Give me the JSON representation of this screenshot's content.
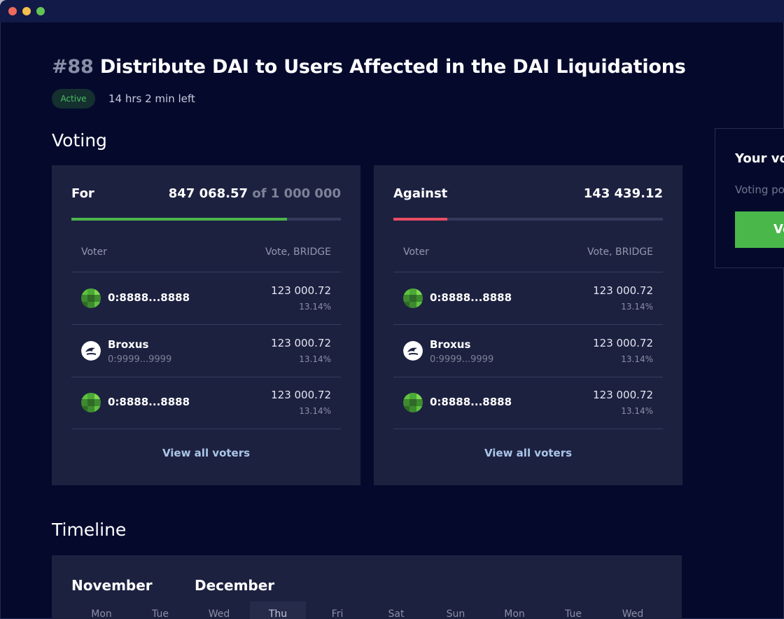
{
  "proposal": {
    "number": "#88",
    "title": "Distribute DAI to Users Affected in the DAI Liquidations",
    "status": "Active",
    "time_left": "14 hrs 2 min left"
  },
  "voting": {
    "section_title": "Voting",
    "for": {
      "label": "For",
      "total": "847 068.57",
      "of_text": "of 1 000 000",
      "progress_fraction": 0.8,
      "bar_color": "#4bb54b",
      "col_voter": "Voter",
      "col_vote": "Vote, BRIDGE",
      "rows": [
        {
          "name": "0:8888...8888",
          "sub": "",
          "amount": "123 000.72",
          "pct": "13.14%",
          "avatar": "green-pattern-avatar"
        },
        {
          "name": "Broxus",
          "sub": "0:9999...9999",
          "amount": "123 000.72",
          "pct": "13.14%",
          "avatar": "broxus-logo-avatar"
        },
        {
          "name": "0:8888...8888",
          "sub": "",
          "amount": "123 000.72",
          "pct": "13.14%",
          "avatar": "green-pattern-avatar"
        }
      ],
      "view_all": "View all voters"
    },
    "against": {
      "label": "Against",
      "total": "143 439.12",
      "progress_fraction": 0.2,
      "bar_color": "#e94d62",
      "col_voter": "Voter",
      "col_vote": "Vote, BRIDGE",
      "rows": [
        {
          "name": "0:8888...8888",
          "sub": "",
          "amount": "123 000.72",
          "pct": "13.14%",
          "avatar": "green-pattern-avatar"
        },
        {
          "name": "Broxus",
          "sub": "0:9999...9999",
          "amount": "123 000.72",
          "pct": "13.14%",
          "avatar": "broxus-logo-avatar"
        },
        {
          "name": "0:8888...8888",
          "sub": "",
          "amount": "123 000.72",
          "pct": "13.14%",
          "avatar": "green-pattern-avatar"
        }
      ],
      "view_all": "View all voters"
    }
  },
  "your_vote": {
    "title": "Your vo",
    "voting_power": "Voting po",
    "button": "Vo",
    "button_color": "#4ab74a"
  },
  "timeline": {
    "section_title": "Timeline",
    "months": [
      "November",
      "December"
    ],
    "days": [
      "Mon",
      "Tue",
      "Wed",
      "Thu",
      "Fri",
      "Sat",
      "Sun",
      "Mon",
      "Tue",
      "Wed"
    ],
    "highlighted_day": "Thu"
  }
}
